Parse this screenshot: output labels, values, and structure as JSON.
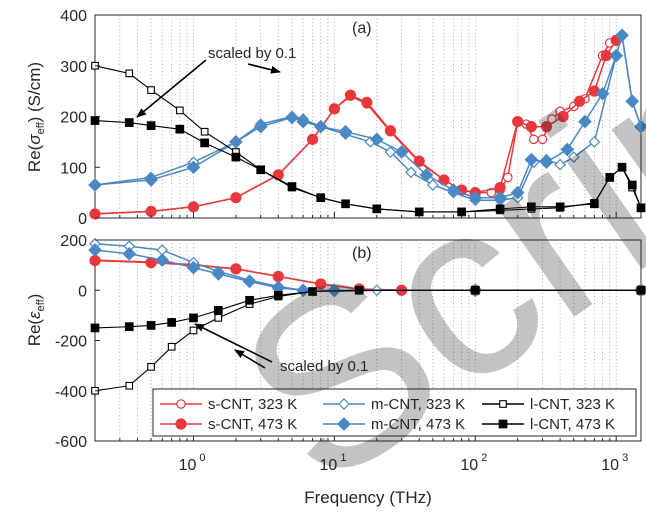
{
  "chart_data": [
    {
      "panel": "(a)",
      "type": "line",
      "x_scale": "log",
      "xlim": [
        0.2,
        1500
      ],
      "ylim": [
        0,
        400
      ],
      "yticks": [
        0,
        100,
        200,
        300,
        400
      ],
      "ylabel": "Re(σ_eff) (S/cm)",
      "grid": "x-minor dotted",
      "annotation": "scaled by 0.1",
      "series": [
        {
          "name": "s-CNT, 323 K",
          "color": "#e8383d",
          "marker": "circle-open",
          "points": [
            [
              0.2,
              8
            ],
            [
              0.5,
              13
            ],
            [
              1,
              22
            ],
            [
              2,
              40
            ],
            [
              4,
              85
            ],
            [
              7,
              155
            ],
            [
              10,
              215
            ],
            [
              13,
              240
            ],
            [
              17,
              225
            ],
            [
              25,
              170
            ],
            [
              40,
              110
            ],
            [
              60,
              75
            ],
            [
              80,
              55
            ],
            [
              100,
              50
            ],
            [
              130,
              50
            ],
            [
              150,
              55
            ],
            [
              170,
              80
            ],
            [
              200,
              190
            ],
            [
              230,
              185
            ],
            [
              260,
              155
            ],
            [
              300,
              155
            ],
            [
              350,
              195
            ],
            [
              400,
              210
            ],
            [
              500,
              220
            ],
            [
              600,
              235
            ],
            [
              800,
              320
            ],
            [
              900,
              345
            ],
            [
              1000,
              350
            ]
          ]
        },
        {
          "name": "s-CNT, 473 K",
          "color": "#e8383d",
          "marker": "circle-filled",
          "points": [
            [
              0.2,
              8
            ],
            [
              0.5,
              13
            ],
            [
              1,
              22
            ],
            [
              2,
              40
            ],
            [
              4,
              85
            ],
            [
              7,
              155
            ],
            [
              10,
              215
            ],
            [
              13,
              242
            ],
            [
              17,
              228
            ],
            [
              25,
              172
            ],
            [
              40,
              112
            ],
            [
              60,
              75
            ],
            [
              80,
              55
            ],
            [
              100,
              50
            ],
            [
              150,
              60
            ],
            [
              200,
              190
            ],
            [
              250,
              180
            ],
            [
              320,
              180
            ],
            [
              420,
              200
            ],
            [
              550,
              230
            ],
            [
              700,
              250
            ],
            [
              850,
              320
            ],
            [
              1000,
              350
            ]
          ]
        },
        {
          "name": "m-CNT, 323 K",
          "color": "#4a88c5",
          "marker": "diamond-open",
          "points": [
            [
              0.2,
              65
            ],
            [
              0.5,
              80
            ],
            [
              1,
              110
            ],
            [
              2,
              150
            ],
            [
              3,
              185
            ],
            [
              5,
              200
            ],
            [
              6,
              195
            ],
            [
              8,
              180
            ],
            [
              12,
              165
            ],
            [
              18,
              150
            ],
            [
              25,
              130
            ],
            [
              35,
              90
            ],
            [
              50,
              65
            ],
            [
              70,
              50
            ],
            [
              100,
              35
            ],
            [
              150,
              35
            ],
            [
              200,
              40
            ],
            [
              260,
              110
            ],
            [
              320,
              115
            ],
            [
              400,
              105
            ],
            [
              500,
              120
            ],
            [
              700,
              150
            ],
            [
              1000,
              320
            ],
            [
              1100,
              360
            ],
            [
              1300,
              230
            ],
            [
              1500,
              180
            ]
          ]
        },
        {
          "name": "m-CNT, 473 K",
          "color": "#4a88c5",
          "marker": "diamond-filled",
          "points": [
            [
              0.2,
              65
            ],
            [
              0.5,
              75
            ],
            [
              1,
              100
            ],
            [
              2,
              150
            ],
            [
              3,
              180
            ],
            [
              5,
              198
            ],
            [
              6,
              190
            ],
            [
              8,
              180
            ],
            [
              12,
              170
            ],
            [
              20,
              155
            ],
            [
              30,
              130
            ],
            [
              45,
              85
            ],
            [
              70,
              55
            ],
            [
              100,
              40
            ],
            [
              150,
              40
            ],
            [
              200,
              50
            ],
            [
              250,
              115
            ],
            [
              320,
              110
            ],
            [
              450,
              135
            ],
            [
              600,
              190
            ],
            [
              800,
              245
            ],
            [
              1000,
              320
            ],
            [
              1100,
              360
            ],
            [
              1300,
              230
            ],
            [
              1500,
              180
            ]
          ]
        },
        {
          "name": "l-CNT, 323 K",
          "color": "#000000",
          "marker": "square-open",
          "points": [
            [
              0.2,
              300
            ],
            [
              0.35,
              285
            ],
            [
              0.5,
              252
            ],
            [
              0.8,
              212
            ],
            [
              1.2,
              170
            ],
            [
              2,
              130
            ],
            [
              3,
              95
            ],
            [
              5,
              60
            ],
            [
              8,
              40
            ],
            [
              12,
              28
            ],
            [
              20,
              18
            ],
            [
              40,
              12
            ],
            [
              80,
              12
            ],
            [
              150,
              15
            ],
            [
              250,
              18
            ],
            [
              400,
              20
            ],
            [
              700,
              30
            ],
            [
              900,
              80
            ],
            [
              1100,
              100
            ],
            [
              1300,
              60
            ],
            [
              1500,
              20
            ]
          ]
        },
        {
          "name": "l-CNT, 473 K",
          "color": "#000000",
          "marker": "square-filled",
          "points": [
            [
              0.2,
              192
            ],
            [
              0.35,
              188
            ],
            [
              0.5,
              182
            ],
            [
              0.8,
              175
            ],
            [
              1.2,
              148
            ],
            [
              2,
              120
            ],
            [
              3,
              95
            ],
            [
              5,
              62
            ],
            [
              8,
              40
            ],
            [
              12,
              28
            ],
            [
              20,
              18
            ],
            [
              40,
              12
            ],
            [
              80,
              12
            ],
            [
              150,
              18
            ],
            [
              250,
              22
            ],
            [
              400,
              22
            ],
            [
              700,
              28
            ],
            [
              900,
              80
            ],
            [
              1100,
              100
            ],
            [
              1300,
              65
            ],
            [
              1500,
              20
            ]
          ]
        }
      ]
    },
    {
      "panel": "(b)",
      "type": "line",
      "x_scale": "log",
      "xlim": [
        0.2,
        1500
      ],
      "ylim": [
        -600,
        200
      ],
      "yticks": [
        -600,
        -400,
        -200,
        0,
        200
      ],
      "xlabel": "Frequency (THz)",
      "ylabel": "Re(ε_eff)",
      "grid": "x-minor dotted",
      "annotation": "scaled by 0.1",
      "series": [
        {
          "name": "s-CNT, 323 K",
          "points": [
            [
              0.2,
              120
            ],
            [
              0.5,
              112
            ],
            [
              1,
              102
            ],
            [
              2,
              85
            ],
            [
              4,
              55
            ],
            [
              8,
              25
            ],
            [
              15,
              5
            ],
            [
              30,
              0
            ],
            [
              100,
              0
            ],
            [
              1500,
              0
            ]
          ]
        },
        {
          "name": "s-CNT, 473 K",
          "points": [
            [
              0.2,
              118
            ],
            [
              0.5,
              110
            ],
            [
              1,
              100
            ],
            [
              2,
              85
            ],
            [
              4,
              55
            ],
            [
              8,
              25
            ],
            [
              15,
              5
            ],
            [
              30,
              0
            ],
            [
              100,
              0
            ],
            [
              1500,
              0
            ]
          ]
        },
        {
          "name": "m-CNT, 323 K",
          "points": [
            [
              0.2,
              185
            ],
            [
              0.35,
              175
            ],
            [
              0.6,
              160
            ],
            [
              1,
              110
            ],
            [
              1.5,
              75
            ],
            [
              2.5,
              40
            ],
            [
              4,
              15
            ],
            [
              6,
              0
            ],
            [
              10,
              -5
            ],
            [
              20,
              0
            ],
            [
              100,
              0
            ],
            [
              1500,
              0
            ]
          ]
        },
        {
          "name": "m-CNT, 473 K",
          "points": [
            [
              0.2,
              160
            ],
            [
              0.35,
              145
            ],
            [
              0.6,
              120
            ],
            [
              1,
              90
            ],
            [
              1.5,
              65
            ],
            [
              2.5,
              35
            ],
            [
              4,
              10
            ],
            [
              6,
              0
            ],
            [
              10,
              0
            ],
            [
              100,
              0
            ],
            [
              1500,
              0
            ]
          ]
        },
        {
          "name": "l-CNT, 323 K",
          "points": [
            [
              0.2,
              -400
            ],
            [
              0.35,
              -380
            ],
            [
              0.5,
              -305
            ],
            [
              0.7,
              -225
            ],
            [
              1,
              -160
            ],
            [
              1.5,
              -110
            ],
            [
              2.5,
              -55
            ],
            [
              4,
              -25
            ],
            [
              7,
              -5
            ],
            [
              15,
              0
            ],
            [
              100,
              0
            ],
            [
              1500,
              0
            ]
          ]
        },
        {
          "name": "l-CNT, 473 K",
          "points": [
            [
              0.2,
              -150
            ],
            [
              0.35,
              -145
            ],
            [
              0.5,
              -140
            ],
            [
              0.7,
              -128
            ],
            [
              1,
              -110
            ],
            [
              1.5,
              -80
            ],
            [
              2.5,
              -40
            ],
            [
              4,
              -20
            ],
            [
              7,
              -5
            ],
            [
              15,
              0
            ],
            [
              100,
              0
            ],
            [
              1500,
              0
            ]
          ]
        }
      ]
    }
  ],
  "xtick_labels": [
    "10",
    "10",
    "10",
    "10"
  ],
  "xtick_exponents": [
    "0",
    "1",
    "2",
    "3"
  ],
  "xtick_values": [
    1,
    10,
    100,
    1000
  ],
  "ytick_labels_a": [
    "0",
    "100",
    "200",
    "300",
    "400"
  ],
  "ytick_labels_b": [
    "-600",
    "-400",
    "-200",
    "0",
    "200"
  ],
  "panel_a_label": "(a)",
  "panel_b_label": "(b)",
  "annotation_a": "scaled by 0.1",
  "annotation_b": "scaled by 0.1",
  "ylabel_a_prefix": "Re(",
  "ylabel_a_symbol": "σ",
  "ylabel_a_sub": "eff",
  "ylabel_a_suffix": ") (S/cm)",
  "ylabel_b_prefix": "Re(",
  "ylabel_b_symbol": "ε",
  "ylabel_b_sub": "eff",
  "ylabel_b_suffix": ")",
  "xlabel": "Frequency (THz)",
  "legend": [
    {
      "label": "s-CNT, 323 K",
      "color": "#e8383d",
      "marker": "circle-open"
    },
    {
      "label": "m-CNT, 323 K",
      "color": "#4a88c5",
      "marker": "diamond-open"
    },
    {
      "label": "l-CNT, 323 K",
      "color": "#000000",
      "marker": "square-open"
    },
    {
      "label": "s-CNT, 473 K",
      "color": "#e8383d",
      "marker": "circle-filled"
    },
    {
      "label": "m-CNT, 473 K",
      "color": "#4a88c5",
      "marker": "diamond-filled"
    },
    {
      "label": "l-CNT, 473 K",
      "color": "#000000",
      "marker": "square-filled"
    }
  ],
  "watermark": "Accepted Manuscript"
}
